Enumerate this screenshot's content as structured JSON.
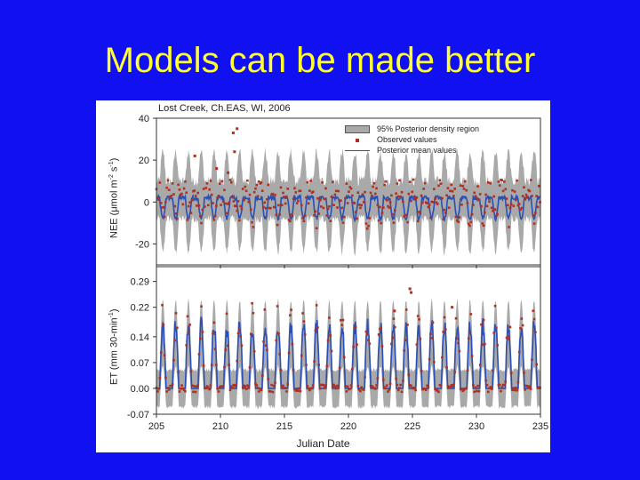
{
  "slide": {
    "title": "Models can be made better"
  },
  "chart_data": [
    {
      "type": "line",
      "title": "Lost Creek, Ch.EAS, WI, 2006",
      "ylabel": "NEE (μmol m-2 s-1)",
      "ylabel_parts": {
        "main": "NEE (μmol m",
        "exp1": "-2",
        "mid": " s",
        "exp2": "-1",
        "end": ")"
      },
      "xlim": [
        205,
        235
      ],
      "ylim": [
        -30,
        40
      ],
      "yticks": [
        -20,
        0,
        20,
        40
      ],
      "xticks": [
        205,
        210,
        215,
        220,
        225,
        230,
        235
      ],
      "legend_position": "top-right",
      "legend": [
        "95% Posterior density region",
        "Observed values",
        "Posterior mean values"
      ],
      "colors": {
        "band": "#a9a9a9",
        "observed": "#b03020",
        "mean": "#2a4fb5"
      },
      "series": [
        {
          "name": "95% Posterior density region",
          "kind": "band",
          "x_step": 0.25,
          "base_upper": 10,
          "base_lower": -8,
          "day_amp_upper": 14,
          "day_amp_lower": 16
        },
        {
          "name": "Posterior mean values",
          "kind": "line",
          "mean_night": 2,
          "day_amp": -10
        },
        {
          "name": "Observed values",
          "kind": "scatter",
          "outliers": [
            {
              "x": 211.3,
              "y": 35
            },
            {
              "x": 211.0,
              "y": 33
            },
            {
              "x": 211.1,
              "y": 24
            },
            {
              "x": 209.7,
              "y": 16
            },
            {
              "x": 208.0,
              "y": 22
            },
            {
              "x": 210.6,
              "y": 14
            }
          ]
        }
      ]
    },
    {
      "type": "line",
      "title": "",
      "ylabel": "ET (mm 30-min-1)",
      "ylabel_parts": {
        "main": "ET (mm 30-min",
        "exp1": "-1",
        "mid": "",
        "exp2": "",
        "end": ")"
      },
      "xlabel": "Julian Date",
      "xlim": [
        205,
        235
      ],
      "ylim": [
        -0.07,
        0.33
      ],
      "yticks": [
        -0.07,
        0.0,
        0.07,
        0.14,
        0.22,
        0.29
      ],
      "ytick_labels": [
        "-0.07",
        "0.00",
        "0.07",
        "0.14",
        "0.22",
        "0.29"
      ],
      "xticks": [
        205,
        210,
        215,
        220,
        225,
        230,
        235
      ],
      "series": [
        {
          "name": "95% Posterior density region",
          "kind": "band",
          "night_upper": 0.05,
          "night_lower": -0.05,
          "day_upper": 0.24,
          "day_lower": 0.06
        },
        {
          "name": "Posterior mean values",
          "kind": "line",
          "day_peak": 0.17
        },
        {
          "name": "Observed values",
          "kind": "scatter",
          "outliers": [
            {
              "x": 224.8,
              "y": 0.27
            },
            {
              "x": 224.9,
              "y": 0.26
            },
            {
              "x": 228.1,
              "y": 0.22
            },
            {
              "x": 223.6,
              "y": 0.21
            }
          ]
        }
      ]
    }
  ]
}
